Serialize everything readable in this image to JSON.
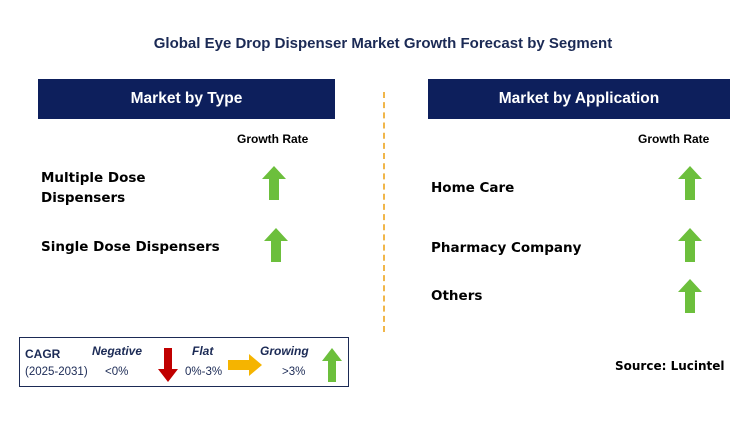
{
  "title": "Global Eye Drop Dispenser Market Growth Forecast by Segment",
  "left_panel": {
    "header": "Market by Type",
    "growth_label": "Growth Rate",
    "items": [
      {
        "label": "Multiple Dose\nDispensers",
        "trend": "growing"
      },
      {
        "label": "Single Dose Dispensers",
        "trend": "growing"
      }
    ]
  },
  "right_panel": {
    "header": "Market by Application",
    "growth_label": "Growth Rate",
    "items": [
      {
        "label": "Home Care",
        "trend": "growing"
      },
      {
        "label": "Pharmacy Company",
        "trend": "growing"
      },
      {
        "label": "Others",
        "trend": "growing"
      }
    ]
  },
  "legend": {
    "cagr": "CAGR",
    "period": "(2025-2031)",
    "negative": {
      "label": "Negative",
      "range": "<0%",
      "icon": "red-down-arrow-icon",
      "color": "#c00000"
    },
    "flat": {
      "label": "Flat",
      "range": "0%-3%",
      "icon": "yellow-right-arrow-icon",
      "color": "#f5b400"
    },
    "growing": {
      "label": "Growing",
      "range": ">3%",
      "icon": "green-up-arrow-icon",
      "color": "#6cbf3c"
    }
  },
  "source": "Source: Lucintel",
  "colors": {
    "header_bg": "#0d1f5c",
    "growing": "#6cbf3c",
    "divider": "#f0b64a"
  }
}
